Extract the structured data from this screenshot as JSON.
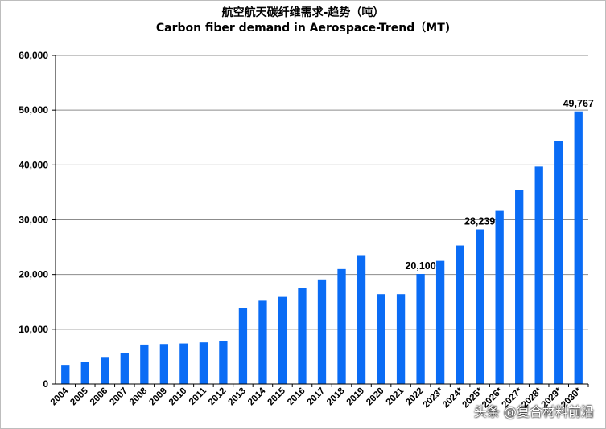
{
  "watermark": "头条 @复合材料前沿",
  "chart_data": {
    "type": "bar",
    "title": "航空航天碳纤维需求-趋势（吨）",
    "subtitle": "Carbon fiber demand in Aerospace-Trend（MT)",
    "categories": [
      "2004",
      "2005",
      "2006",
      "2007",
      "2008",
      "2009",
      "2010",
      "2011",
      "2012",
      "2013",
      "2014",
      "2015",
      "2016",
      "2017",
      "2018",
      "2019",
      "2020",
      "2021",
      "2022",
      "2023*",
      "2024*",
      "2025*",
      "2026*",
      "2027*",
      "2028*",
      "2029*",
      "2030*"
    ],
    "values": [
      3500,
      4100,
      4800,
      5700,
      7200,
      7300,
      7400,
      7600,
      7800,
      13900,
      15200,
      15900,
      17600,
      19100,
      21000,
      23400,
      16400,
      16400,
      20100,
      22500,
      25300,
      28239,
      31600,
      35400,
      39700,
      44400,
      49767
    ],
    "data_labels": [
      {
        "category": "2022",
        "text": "20,100"
      },
      {
        "category": "2025*",
        "text": "28,239"
      },
      {
        "category": "2030*",
        "text": "49,767"
      }
    ],
    "yticks": [
      "0",
      "10,000",
      "20,000",
      "30,000",
      "40,000",
      "50,000",
      "60,000"
    ],
    "ylim": [
      0,
      60000
    ],
    "xlabel": "",
    "ylabel": "",
    "bar_color": "#0a6cf5",
    "grid": true,
    "legend": "none"
  }
}
